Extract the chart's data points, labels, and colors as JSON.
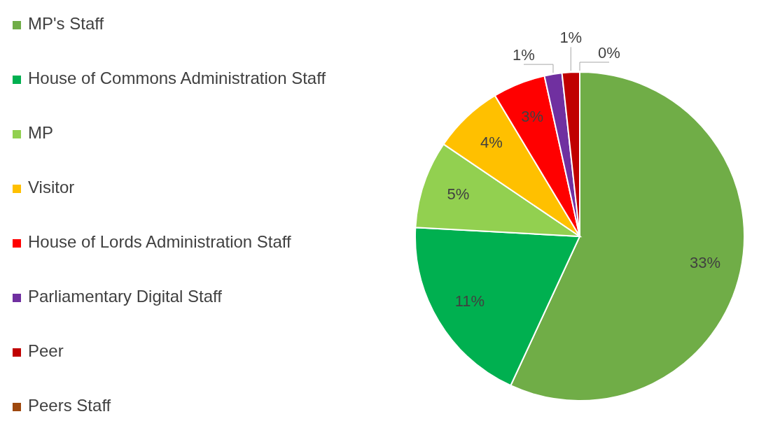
{
  "chart_data": {
    "type": "pie",
    "categories": [
      "MP's Staff",
      "House of Commons Administration Staff",
      "MP",
      "Visitor",
      "House of Lords Administration Staff",
      "Parliamentary Digital Staff",
      "Peer",
      "Peers Staff"
    ],
    "values": [
      33,
      11,
      5,
      4,
      3,
      1,
      1,
      0
    ],
    "value_labels": [
      "33%",
      "11%",
      "5%",
      "4%",
      "3%",
      "1%",
      "1%",
      "0%"
    ],
    "colors": [
      "#70ad47",
      "#00b050",
      "#92d050",
      "#ffc000",
      "#ff0000",
      "#7030a0",
      "#c00000",
      "#9e480e"
    ],
    "legend": "left"
  }
}
